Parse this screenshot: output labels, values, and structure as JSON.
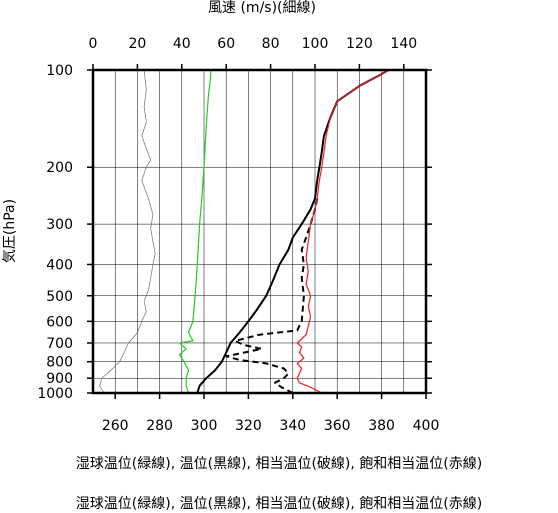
{
  "chart_data": {
    "type": "line",
    "top_axis_label": "風速 (m/s)(細線)",
    "ylabel": "気圧(hPa)",
    "top_axis": {
      "ticks": [
        0,
        20,
        40,
        60,
        80,
        100,
        120,
        140
      ],
      "range": [
        0,
        150
      ]
    },
    "bottom_axis": {
      "ticks": [
        260,
        280,
        300,
        320,
        340,
        360,
        380,
        400
      ],
      "range": [
        250,
        400
      ]
    },
    "pressure_axis": {
      "scale": "log",
      "ticks": [
        100,
        200,
        300,
        400,
        500,
        600,
        700,
        800,
        900,
        1000
      ],
      "range": [
        1000,
        100
      ]
    },
    "grid": true,
    "series": [
      {
        "key": "wind",
        "color": "#707070",
        "style": "thin",
        "axis": "top",
        "points": [
          [
            5,
            1000
          ],
          [
            3,
            950
          ],
          [
            4,
            900
          ],
          [
            8,
            850
          ],
          [
            12,
            800
          ],
          [
            14,
            750
          ],
          [
            16,
            700
          ],
          [
            18,
            675
          ],
          [
            20,
            650
          ],
          [
            22,
            600
          ],
          [
            24,
            560
          ],
          [
            23,
            520
          ],
          [
            25,
            480
          ],
          [
            26,
            440
          ],
          [
            27,
            400
          ],
          [
            28,
            370
          ],
          [
            27,
            340
          ],
          [
            26,
            310
          ],
          [
            27,
            280
          ],
          [
            25,
            250
          ],
          [
            22,
            220
          ],
          [
            24,
            200
          ],
          [
            26,
            190
          ],
          [
            24,
            175
          ],
          [
            22,
            160
          ],
          [
            24,
            145
          ],
          [
            23,
            130
          ],
          [
            24,
            115
          ],
          [
            23,
            100
          ]
        ]
      },
      {
        "key": "wet_bulb",
        "color": "#22cc22",
        "style": "solid",
        "axis": "bottom",
        "points": [
          [
            293,
            1000
          ],
          [
            292,
            950
          ],
          [
            292,
            900
          ],
          [
            293,
            850
          ],
          [
            291,
            800
          ],
          [
            289,
            760
          ],
          [
            292,
            730
          ],
          [
            289,
            700
          ],
          [
            295,
            690
          ],
          [
            293,
            650
          ],
          [
            295,
            600
          ],
          [
            296,
            500
          ],
          [
            297,
            400
          ],
          [
            298,
            300
          ],
          [
            299,
            250
          ],
          [
            300,
            200
          ],
          [
            301,
            150
          ],
          [
            302,
            120
          ],
          [
            303,
            105
          ],
          [
            303,
            100
          ]
        ]
      },
      {
        "key": "potential_temp",
        "color": "#000000",
        "style": "solid",
        "axis": "bottom",
        "points": [
          [
            297,
            1000
          ],
          [
            298,
            950
          ],
          [
            301,
            900
          ],
          [
            305,
            850
          ],
          [
            308,
            800
          ],
          [
            310,
            750
          ],
          [
            312,
            700
          ],
          [
            316,
            650
          ],
          [
            320,
            600
          ],
          [
            324,
            550
          ],
          [
            328,
            500
          ],
          [
            331,
            450
          ],
          [
            334,
            400
          ],
          [
            338,
            360
          ],
          [
            340,
            330
          ],
          [
            344,
            300
          ],
          [
            348,
            270
          ],
          [
            350,
            250
          ],
          [
            351,
            220
          ],
          [
            352,
            200
          ],
          [
            353,
            180
          ],
          [
            354,
            160
          ],
          [
            357,
            140
          ],
          [
            360,
            125
          ],
          [
            370,
            112
          ],
          [
            380,
            103
          ],
          [
            383,
            100
          ]
        ]
      },
      {
        "key": "equiv_potential_temp",
        "color": "#000000",
        "style": "dashed",
        "axis": "bottom",
        "points": [
          [
            340,
            1000
          ],
          [
            335,
            960
          ],
          [
            332,
            930
          ],
          [
            336,
            900
          ],
          [
            338,
            870
          ],
          [
            336,
            840
          ],
          [
            328,
            810
          ],
          [
            316,
            790
          ],
          [
            310,
            770
          ],
          [
            318,
            750
          ],
          [
            326,
            730
          ],
          [
            318,
            710
          ],
          [
            314,
            690
          ],
          [
            325,
            660
          ],
          [
            342,
            640
          ],
          [
            344,
            600
          ],
          [
            345,
            500
          ],
          [
            344,
            440
          ],
          [
            345,
            400
          ],
          [
            344,
            360
          ],
          [
            346,
            330
          ],
          [
            348,
            300
          ],
          [
            350,
            270
          ],
          [
            351,
            250
          ]
        ]
      },
      {
        "key": "sat_equiv_potential_temp",
        "color": "#ee2222",
        "style": "solid",
        "axis": "bottom",
        "points": [
          [
            353,
            1000
          ],
          [
            348,
            960
          ],
          [
            343,
            930
          ],
          [
            342,
            900
          ],
          [
            343,
            870
          ],
          [
            344,
            840
          ],
          [
            342,
            810
          ],
          [
            345,
            780
          ],
          [
            343,
            750
          ],
          [
            344,
            720
          ],
          [
            342,
            700
          ],
          [
            346,
            660
          ],
          [
            347,
            620
          ],
          [
            348,
            580
          ],
          [
            347,
            540
          ],
          [
            348,
            500
          ],
          [
            346,
            460
          ],
          [
            347,
            420
          ],
          [
            346,
            380
          ],
          [
            347,
            340
          ],
          [
            348,
            300
          ],
          [
            350,
            270
          ],
          [
            351,
            250
          ],
          [
            352,
            220
          ],
          [
            353,
            200
          ],
          [
            354,
            180
          ],
          [
            355,
            160
          ],
          [
            357,
            140
          ],
          [
            360,
            125
          ],
          [
            370,
            112
          ],
          [
            380,
            103
          ],
          [
            383,
            100
          ]
        ]
      }
    ]
  },
  "captions": [
    "湿球温位(緑線), 温位(黒線), 相当温位(破線), 飽和相当温位(赤線)",
    "湿球温位(緑線), 温位(黒線), 相当温位(破線), 飽和相当温位(赤線)"
  ]
}
